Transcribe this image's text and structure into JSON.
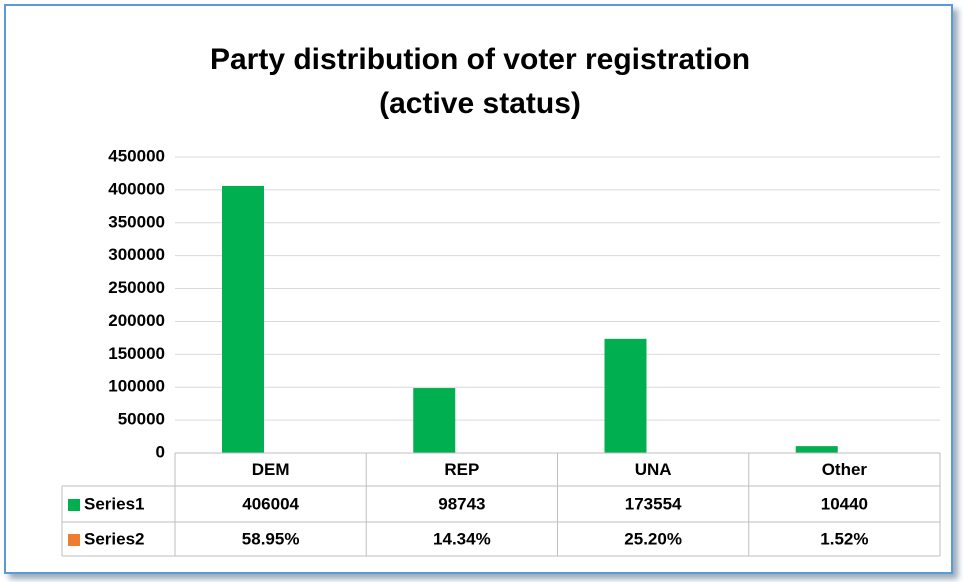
{
  "chart_data": {
    "type": "bar",
    "title": "Party distribution of voter registration (active status)",
    "categories": [
      "DEM",
      "REP",
      "UNA",
      "Other"
    ],
    "series": [
      {
        "name": "Series1",
        "color": "#00b050",
        "values": [
          406004,
          98743,
          173554,
          10440
        ]
      },
      {
        "name": "Series2",
        "color": "#ed7d31",
        "values": [
          58.95,
          14.34,
          25.2,
          1.52
        ],
        "value_labels": [
          "58.95%",
          "14.34%",
          "25.20%",
          "1.52%"
        ]
      }
    ],
    "ylim": [
      0,
      450000
    ],
    "yticks": [
      0,
      50000,
      100000,
      150000,
      200000,
      250000,
      300000,
      350000,
      400000,
      450000
    ],
    "grid": true
  }
}
